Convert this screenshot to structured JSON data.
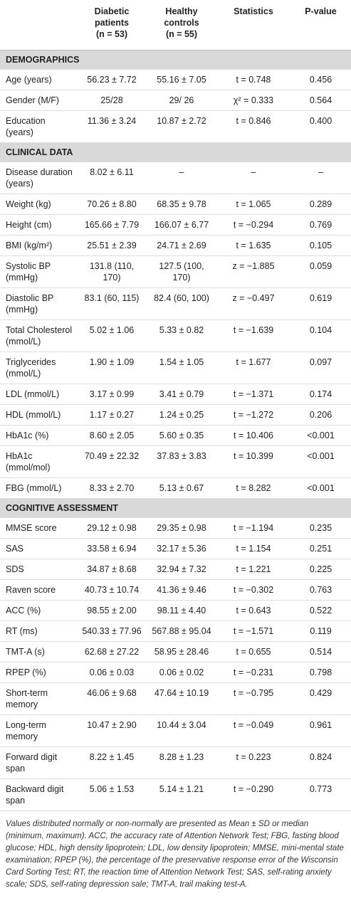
{
  "table": {
    "columns": [
      [
        "Diabetic patients",
        "(n = 53)"
      ],
      [
        "Healthy controls",
        "(n = 55)"
      ],
      [
        "Statistics"
      ],
      [
        "P-value"
      ]
    ],
    "sections": [
      {
        "title": "DEMOGRAPHICS",
        "rows": [
          [
            "Age (years)",
            "56.23 ± 7.72",
            "55.16 ± 7.05",
            "t = 0.748",
            "0.456"
          ],
          [
            "Gender (M/F)",
            "25/28",
            "29/ 26",
            "χ² = 0.333",
            "0.564"
          ],
          [
            "Education (years)",
            "11.36 ± 3.24",
            "10.87 ± 2.72",
            "t = 0.846",
            "0.400"
          ]
        ]
      },
      {
        "title": "CLINICAL DATA",
        "rows": [
          [
            "Disease duration (years)",
            "8.02 ± 6.11",
            "–",
            "–",
            "–"
          ],
          [
            "Weight (kg)",
            "70.26 ± 8.80",
            "68.35 ± 9.78",
            "t = 1.065",
            "0.289"
          ],
          [
            "Height (cm)",
            "165.66 ± 7.79",
            "166.07 ± 6.77",
            "t = −0.294",
            "0.769"
          ],
          [
            "BMI (kg/m²)",
            "25.51 ± 2.39",
            "24.71 ± 2.69",
            "t = 1.635",
            "0.105"
          ],
          [
            "Systolic BP (mmHg)",
            "131.8 (110, 170)",
            "127.5 (100, 170)",
            "z = −1.885",
            "0.059"
          ],
          [
            "Diastolic BP (mmHg)",
            "83.1 (60, 115)",
            "82.4 (60, 100)",
            "z = −0.497",
            "0.619"
          ],
          [
            "Total Cholesterol (mmol/L)",
            "5.02 ± 1.06",
            "5.33 ± 0.82",
            "t = −1.639",
            "0.104"
          ],
          [
            "Triglycerides (mmol/L)",
            "1.90 ± 1.09",
            "1.54 ± 1.05",
            "t = 1.677",
            "0.097"
          ],
          [
            "LDL (mmol/L)",
            "3.17 ± 0.99",
            "3.41 ± 0.79",
            "t = −1.371",
            "0.174"
          ],
          [
            "HDL (mmol/L)",
            "1.17 ± 0.27",
            "1.24 ± 0.25",
            "t = −1.272",
            "0.206"
          ],
          [
            "HbA1c (%)",
            "8.60 ± 2.05",
            "5.60 ± 0.35",
            "t = 10.406",
            "<0.001"
          ],
          [
            "HbA1c (mmol/mol)",
            "70.49 ± 22.32",
            "37.83 ± 3.83",
            "t = 10.399",
            "<0.001"
          ],
          [
            "FBG (mmol/L)",
            "8.33 ± 2.70",
            "5.13 ± 0.67",
            "t = 8.282",
            "<0.001"
          ]
        ]
      },
      {
        "title": "COGNITIVE ASSESSMENT",
        "rows": [
          [
            "MMSE score",
            "29.12 ± 0.98",
            "29.35 ± 0.98",
            "t = −1.194",
            "0.235"
          ],
          [
            "SAS",
            "33.58 ± 6.94",
            "32.17 ± 5.36",
            "t = 1.154",
            "0.251"
          ],
          [
            "SDS",
            "34.87 ± 8.68",
            "32.94 ± 7.32",
            "t = 1.221",
            "0.225"
          ],
          [
            "Raven score",
            "40.73 ± 10.74",
            "41.36 ± 9.46",
            "t = −0.302",
            "0.763"
          ],
          [
            "ACC (%)",
            "98.55 ± 2.00",
            "98.11 ± 4.40",
            "t = 0.643",
            "0.522"
          ],
          [
            "RT (ms)",
            "540.33 ± 77.96",
            "567.88 ± 95.04",
            "t = −1.571",
            "0.119"
          ],
          [
            "TMT-A (s)",
            "62.68 ± 27.22",
            "58.95 ± 28.46",
            "t = 0.655",
            "0.514"
          ],
          [
            "RPEP (%)",
            "0.06 ± 0.03",
            "0.06 ± 0.02",
            "t = −0.231",
            "0.798"
          ],
          [
            "Short-term memory",
            "46.06 ± 9.68",
            "47.64 ± 10.19",
            "t = −0.795",
            "0.429"
          ],
          [
            "Long-term memory",
            "10.47 ± 2.90",
            "10.44 ± 3.04",
            "t = −0.049",
            "0.961"
          ],
          [
            "Forward digit span",
            "8.22 ± 1.45",
            "8.28 ± 1.23",
            "t = 0.223",
            "0.824"
          ],
          [
            "Backward digit span",
            "5.06 ± 1.53",
            "5.14 ± 1.21",
            "t = −0.290",
            "0.773"
          ]
        ]
      }
    ],
    "footnote": "Values distributed normally or non-normally are presented as Mean ± SD or median (minimum, maximum). ACC, the accuracy rate of Attention Network Test; FBG, fasting blood glucose; HDL, high density lipoprotein; LDL, low density lipoprotein; MMSE, mini-mental state examination; RPEP (%), the percentage of the preservative response error of the Wisconsin Card Sorting Test; RT, the reaction time of Attention Network Test; SAS, self-rating anxiety scale; SDS, self-rating depression sale; TMT-A, trail making test-A."
  }
}
